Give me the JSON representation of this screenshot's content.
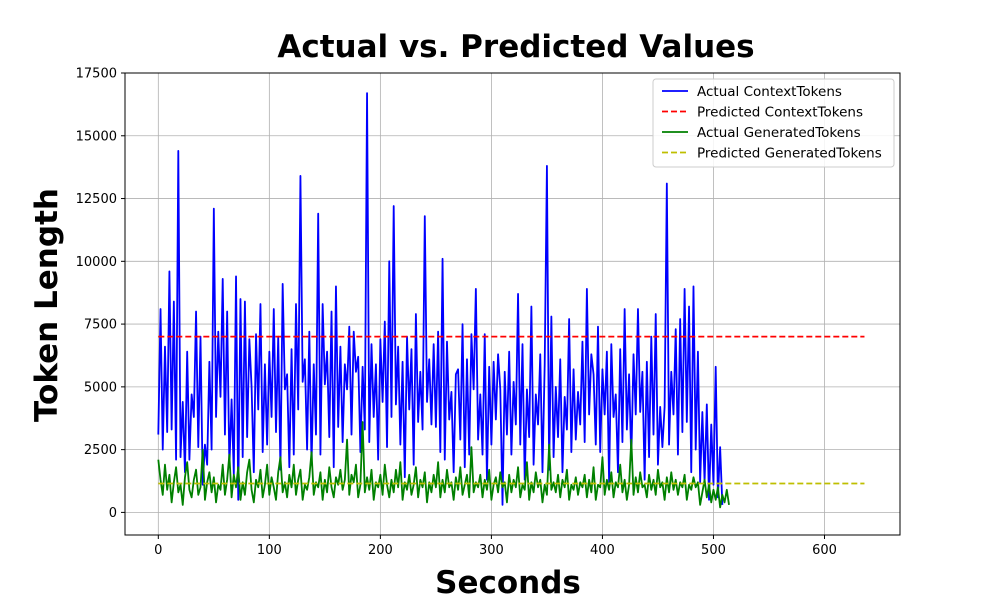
{
  "chart_data": {
    "type": "line",
    "title": "Actual vs. Predicted Values",
    "xlabel": "Seconds",
    "ylabel": "Token Length",
    "xlim": [
      -30,
      668
    ],
    "ylim": [
      -900,
      17500
    ],
    "xticks": [
      0,
      100,
      200,
      300,
      400,
      500,
      600
    ],
    "yticks": [
      0,
      2500,
      5000,
      7500,
      10000,
      12500,
      15000,
      17500
    ],
    "grid": true,
    "legend_position": "top-right",
    "series": [
      {
        "name": "Actual ContextTokens",
        "color": "#0000ff",
        "style": "solid",
        "x_start": 0,
        "x_step": 2,
        "values": [
          3100,
          8100,
          2500,
          6600,
          3200,
          9600,
          3300,
          8400,
          2100,
          14400,
          2200,
          4400,
          1600,
          6400,
          2100,
          4700,
          3800,
          8000,
          2600,
          7000,
          1100,
          2700,
          1900,
          6000,
          2500,
          12100,
          3800,
          7200,
          4600,
          9300,
          3100,
          8000,
          1800,
          4500,
          1500,
          9400,
          500,
          8500,
          2200,
          8400,
          3000,
          6900,
          5000,
          1600,
          7100,
          4100,
          8300,
          2400,
          5900,
          2700,
          6400,
          3800,
          8100,
          3200,
          7000,
          1700,
          9100,
          4900,
          5500,
          1800,
          6500,
          2300,
          8300,
          4100,
          13400,
          5200,
          6100,
          2500,
          7200,
          1900,
          5900,
          3100,
          11900,
          2300,
          8300,
          5100,
          6400,
          3000,
          8000,
          1800,
          9000,
          3400,
          6600,
          2800,
          5900,
          4900,
          7400,
          3100,
          7200,
          5600,
          6200,
          2400,
          5800,
          3300,
          16700,
          2800,
          6700,
          3800,
          5900,
          2100,
          6900,
          4400,
          7600,
          2600,
          10000,
          3800,
          12200,
          4300,
          6600,
          2700,
          6000,
          1400,
          7000,
          4100,
          6500,
          1900,
          7900,
          3600,
          5600,
          3300,
          11800,
          4400,
          6100,
          3500,
          6700,
          3400,
          7200,
          2400,
          10100,
          2100,
          6800,
          3700,
          4800,
          1600,
          5500,
          5700,
          2900,
          7500,
          1800,
          6100,
          2300,
          7100,
          4900,
          8900,
          2900,
          4700,
          2300,
          7100,
          1300,
          5800,
          2700,
          6000,
          3700,
          6300,
          4900,
          300,
          5600,
          3100,
          6400,
          2300,
          5200,
          3500,
          8700,
          2700,
          6700,
          1300,
          4900,
          3000,
          8200,
          1900,
          4700,
          3500,
          6300,
          1600,
          5900,
          13800,
          1700,
          7800,
          2200,
          5000,
          3000,
          6100,
          1600,
          4600,
          3300,
          7700,
          2400,
          5700,
          2900,
          4800,
          3500,
          6800,
          2800,
          8900,
          3900,
          6300,
          5500,
          2700,
          7400,
          2400,
          5700,
          3900,
          6400,
          1200,
          6700,
          3800,
          4700,
          1600,
          6500,
          2800,
          8100,
          3300,
          5500,
          2100,
          6300,
          3900,
          8100,
          4000,
          5600,
          1300,
          6000,
          2200,
          7000,
          3100,
          7900,
          1900,
          4200,
          2600,
          4200,
          13100,
          2700,
          5600,
          3900,
          7300,
          2300,
          7700,
          3200,
          8900,
          3600,
          8200,
          1600,
          9000,
          2500,
          6400,
          1200,
          4000,
          1200,
          4300,
          500,
          3500,
          1100,
          5800,
          600,
          2600,
          300
        ]
      },
      {
        "name": "Predicted ContextTokens",
        "color": "#ff0000",
        "style": "dashed",
        "x": [
          0,
          636
        ],
        "y": [
          7000,
          7000
        ]
      },
      {
        "name": "Actual GeneratedTokens",
        "color": "#008000",
        "style": "solid",
        "x_start": 0,
        "x_step": 2,
        "values": [
          2100,
          1300,
          700,
          1900,
          900,
          1500,
          400,
          1200,
          1800,
          800,
          1100,
          300,
          1400,
          2000,
          900,
          600,
          1300,
          1700,
          700,
          1000,
          2500,
          500,
          1200,
          1600,
          800,
          1400,
          400,
          1100,
          900,
          1900,
          700,
          1300,
          2300,
          600,
          1500,
          1000,
          1800,
          500,
          1200,
          700,
          1600,
          2100,
          900,
          400,
          1300,
          1000,
          1700,
          600,
          1100,
          1900,
          700,
          1400,
          1000,
          500,
          1600,
          2200,
          800,
          1200,
          600,
          1500,
          1000,
          1900,
          700,
          1300,
          1700,
          500,
          1100,
          900,
          1400,
          2400,
          700,
          1200,
          1000,
          1600,
          500,
          1300,
          800,
          1800,
          1000,
          600,
          1400,
          1100,
          1700,
          900,
          1300,
          2900,
          700,
          1500,
          1200,
          1900,
          600,
          1100,
          3600,
          800,
          1400,
          900,
          1700,
          500,
          1200,
          1000,
          1500,
          700,
          1900,
          1100,
          600,
          1300,
          800,
          1700,
          1000,
          2000,
          500,
          1200,
          900,
          1500,
          700,
          1100,
          1800,
          600,
          1300,
          1000,
          1600,
          400,
          1200,
          800,
          1500,
          1000,
          2000,
          600,
          1300,
          800,
          1700,
          1000,
          1200,
          500,
          1400,
          900,
          1800,
          700,
          1100,
          1500,
          600,
          2600,
          800,
          1200,
          1000,
          1500,
          600,
          1300,
          900,
          1700,
          500,
          1100,
          1400,
          800,
          1600,
          1000,
          1200,
          400,
          1500,
          800,
          1300,
          1000,
          1800,
          600,
          1100,
          900,
          2000,
          500,
          1200,
          800,
          1600,
          1000,
          1300,
          400,
          1100,
          700,
          2700,
          900,
          1200,
          800,
          1500,
          600,
          1300,
          1000,
          1700,
          500,
          1100,
          900,
          1400,
          700,
          1200,
          1000,
          1500,
          600,
          1300,
          800,
          1800,
          500,
          1100,
          1000,
          2200,
          700,
          1300,
          900,
          1600,
          600,
          1200,
          1000,
          1900,
          800,
          1300,
          500,
          1100,
          2900,
          700,
          1400,
          800,
          1600,
          1000,
          1100,
          600,
          1500,
          900,
          1300,
          700,
          1700,
          1000,
          1200,
          500,
          1400,
          800,
          1600,
          900,
          1300,
          700,
          1200,
          1000,
          1500,
          500,
          1100,
          900,
          1400,
          1000,
          1200,
          300,
          800,
          1300,
          600,
          1100,
          400,
          900,
          500,
          1000,
          200,
          700,
          400,
          900,
          300
        ]
      },
      {
        "name": "Predicted GeneratedTokens",
        "color": "#bfbf00",
        "style": "dashed",
        "x": [
          0,
          636
        ],
        "y": [
          1150,
          1150
        ]
      }
    ]
  }
}
